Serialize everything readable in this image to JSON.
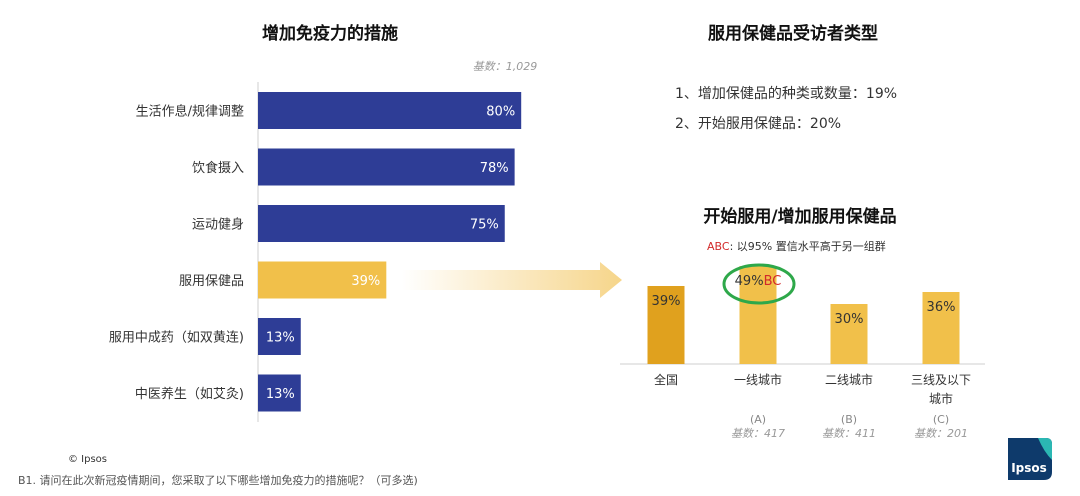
{
  "left_title": "增加免疫力的措施",
  "base_left": "基数：1,029",
  "right_title": "服用保健品受访者类型",
  "right_items": [
    "1、增加保健品的种类或数量：19%",
    "2、开始服用保健品：20%"
  ],
  "sub_title": "开始服用/增加服用保健品",
  "abc_prefix": "ABC",
  "abc_note": ": 以95% 置信水平高于另一组群",
  "copyright": "© Ipsos",
  "footnote": "B1. 请问在此次新冠疫情期间，您采取了以下哪些增加免疫力的措施呢？（可多选)",
  "logo": "Ipsos",
  "colors": {
    "navy": "#2E3D96",
    "gold": "#F1C04A",
    "gold_dark": "#E0A11E",
    "green": "#2EA84A",
    "red": "#D22A2A"
  },
  "chart_data": [
    {
      "type": "bar",
      "orientation": "horizontal",
      "title": "增加免疫力的措施",
      "categories": [
        "生活作息/规律调整",
        "饮食摄入",
        "运动健身",
        "服用保健品",
        "服用中成药（如双黄连)",
        "中医养生（如艾灸)"
      ],
      "values": [
        80,
        78,
        75,
        39,
        13,
        13
      ],
      "value_labels": [
        "80%",
        "78%",
        "75%",
        "39%",
        "13%",
        "13%"
      ],
      "highlight": "服用保健品",
      "xlim": [
        0,
        100
      ]
    },
    {
      "type": "bar",
      "title": "开始服用/增加服用保健品",
      "categories": [
        "全国",
        "一线城市",
        "二线城市",
        "三线及以下城市"
      ],
      "category_lines": [
        [
          "全国"
        ],
        [
          "一线城市"
        ],
        [
          "二线城市"
        ],
        [
          "三线及以下",
          "城市"
        ]
      ],
      "group_codes": [
        "",
        "(A)",
        "(B)",
        "(C)"
      ],
      "bases": [
        "",
        "基数：417",
        "基数：411",
        "基数：201"
      ],
      "values": [
        39,
        49,
        30,
        36
      ],
      "value_labels": [
        "39%",
        "49%",
        "30%",
        "36%"
      ],
      "significance": [
        "",
        "BC",
        "",
        ""
      ],
      "ylim": [
        0,
        60
      ]
    }
  ]
}
